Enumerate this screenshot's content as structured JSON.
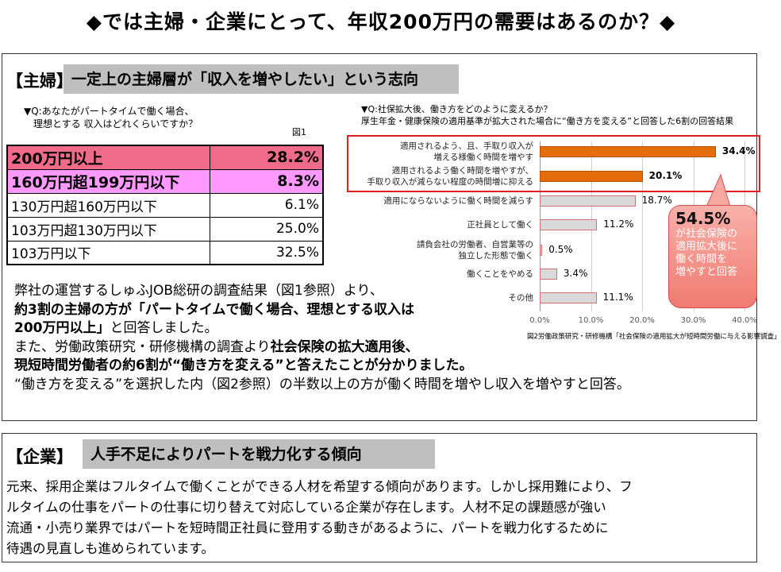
{
  "title": "◆では主婦・企業にとって、年収200万円の需要はあるのか？◆",
  "housewife": {
    "section_label": "【主婦】",
    "headline": "一定上の主婦層が「収入を増やしたい」という志向",
    "table_question": [
      "▼Q:あなたがパートタイムで働く場合、",
      "理想とする 収入はどれくらいですか？"
    ],
    "table_fig": "図1",
    "table_rows": [
      {
        "label": "200万円以上",
        "value": "28.2%"
      },
      {
        "label": "160万円超199万円以下",
        "value": "8.3%"
      },
      {
        "label": "130万円超160万円以下",
        "value": "6.1%"
      },
      {
        "label": "103万円超130万円以下",
        "value": "25.0%"
      },
      {
        "label": "103万円以下",
        "value": "32.5%"
      }
    ],
    "paragraph": [
      {
        "normal": "弊社の運営するしゅふJOB総研の調査結果（図1参照）より、"
      },
      {
        "bold": "約3割の主婦の方が「パートタイムで働く場合、理想とする収入は"
      },
      {
        "bold": "200万円以上」",
        "normal": "と回答しました。"
      },
      {
        "normal": "また、労働政策研究・研修機構の調査より",
        "bold": "社会保険の拡大適用後、"
      },
      {
        "bold": "現短時間労働者の約6割が“働き方を変える”と答えたことが分かりました。"
      },
      {
        "normal": "“働き方を変える”を選択した内（図2参照）の半数以上の方が働く時間を増やし収入を増やすと回答。"
      }
    ]
  },
  "chart_data": {
    "type": "bar",
    "orientation": "horizontal",
    "title": "▼Q:社保拡大後、働き方をどのように変えるか？",
    "subtitle": "厚生年金・健康保険の適用基準が拡大された場合に“働き方を変える”と回答した6割の回答結果",
    "categories": [
      [
        "適用されるよう、且、手取り収入が",
        "増える様働く時間を増やす"
      ],
      [
        "適用されるよう働く時間を増やすが、",
        "手取り収入が減らない程度の時間増に抑える"
      ],
      [
        "適用にならないように働く時間を減らす"
      ],
      [
        "正社員として働く"
      ],
      [
        "請負会社の労働者、自営業等の",
        "独立した形態で働く"
      ],
      [
        "働くことをやめる"
      ],
      [
        "その他"
      ]
    ],
    "values": [
      34.4,
      20.1,
      18.7,
      11.2,
      0.5,
      3.4,
      11.1
    ],
    "value_labels": [
      "34.4%",
      "20.1%",
      "18.7%",
      "11.2%",
      "0.5%",
      "3.4%",
      "11.1%"
    ],
    "highlighted": [
      true,
      true,
      false,
      false,
      false,
      false,
      false
    ],
    "xlim": [
      0,
      40
    ],
    "xticks": [
      "0.0%",
      "10.0%",
      "20.0%",
      "30.0%",
      "40.0%"
    ],
    "grid": true,
    "caption": "図2労働政策研究・研修機構「社会保険の適用拡大が短時間労働に与える影響調査」",
    "colors": {
      "highlight": "#e46c0a",
      "normal": "#d9d9d9",
      "normal_border": "#d07070"
    },
    "callout": {
      "value": "54.5%",
      "text": [
        "が社会保険の",
        "適用拡大後に",
        "働く時間を",
        "増やすと回答"
      ]
    }
  },
  "company": {
    "section_label": "【企業】",
    "headline": "人手不足によりパートを戦力化する傾向",
    "body": [
      "元来、採用企業はフルタイムで働くことができる人材を希望する傾向があります。しかし採用難により、フ",
      "ルタイムの仕事をパートの仕事に切り替えて対応している企業が存在します。人材不足の課題感が強い",
      "流通・小売り業界ではパートを短時間正社員に登用する動きがあるように、パートを戦力化するために",
      "待遇の見直しも進められています。"
    ]
  }
}
